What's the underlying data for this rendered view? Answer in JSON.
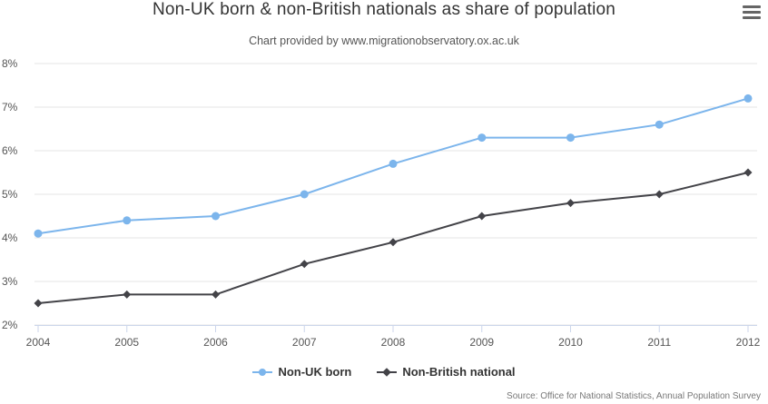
{
  "header": {
    "title": "Non-UK born & non-British nationals as share of population",
    "subtitle": "Chart provided by www.migrationobservatory.ox.ac.uk"
  },
  "credits": "Source: Office for National Statistics, Annual Population Survey",
  "chart_data": {
    "type": "line",
    "title": "Non-UK born & non-British nationals as share of population",
    "subtitle": "Chart provided by www.migrationobservatory.ox.ac.uk",
    "xlabel": "",
    "ylabel": "",
    "x": [
      "2004",
      "2005",
      "2006",
      "2007",
      "2008",
      "2009",
      "2010",
      "2011",
      "2012"
    ],
    "ylim": [
      2,
      8
    ],
    "yticks": [
      "2%",
      "3%",
      "4%",
      "5%",
      "6%",
      "7%",
      "8%"
    ],
    "grid": true,
    "legend_position": "bottom",
    "series": [
      {
        "name": "Non-UK born",
        "color": "#7cb5ec",
        "marker": "circle",
        "values": [
          4.1,
          4.4,
          4.5,
          5.0,
          5.7,
          6.3,
          6.3,
          6.6,
          7.2
        ]
      },
      {
        "name": "Non-British national",
        "color": "#434348",
        "marker": "diamond",
        "values": [
          2.5,
          2.7,
          2.7,
          3.4,
          3.9,
          4.5,
          4.8,
          5.0,
          5.5
        ]
      }
    ]
  }
}
